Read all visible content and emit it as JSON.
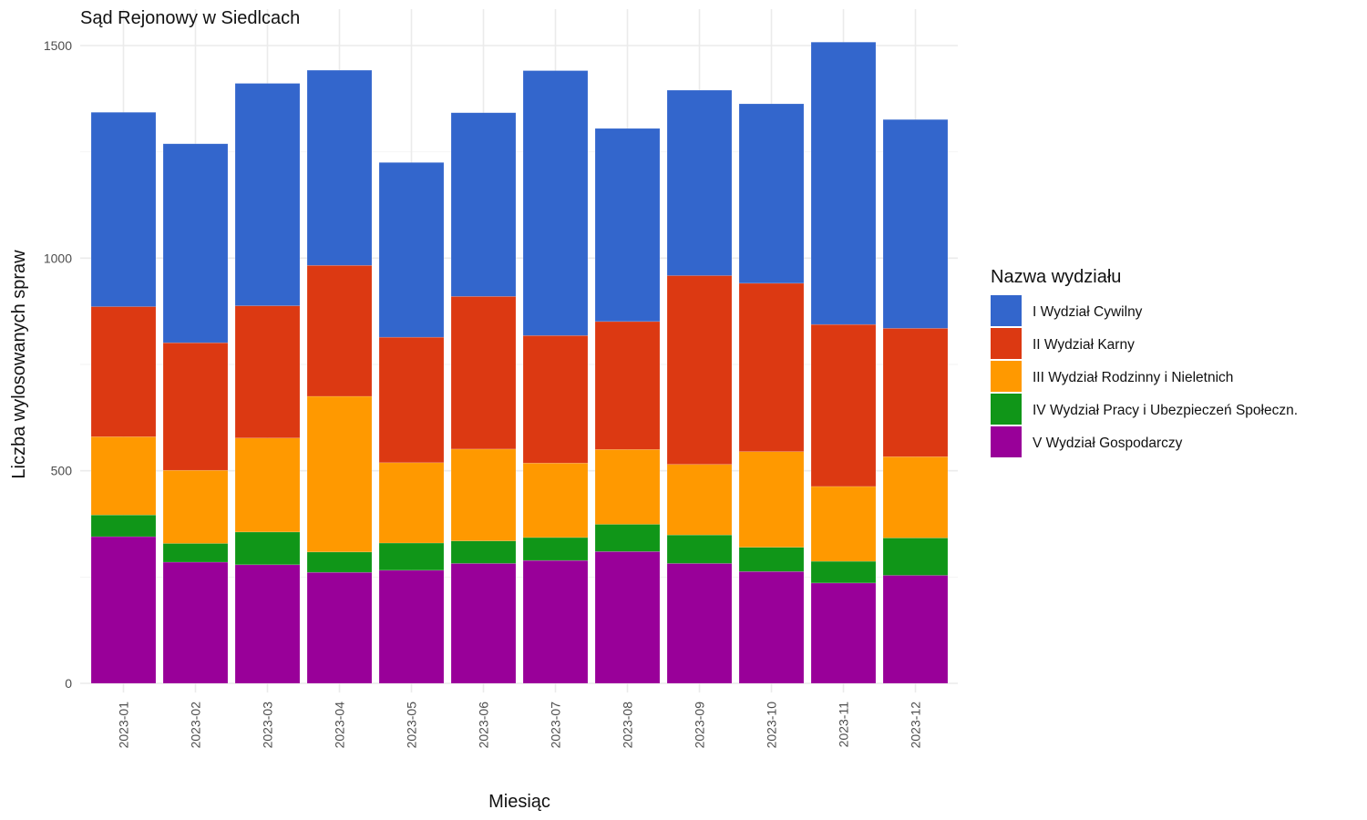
{
  "chart_data": {
    "type": "bar",
    "stacked": true,
    "title": "Sąd Rejonowy w Siedlcach",
    "xlabel": "Miesiąc",
    "ylabel": "Liczba wylosowanych spraw",
    "ylim": [
      0,
      1500
    ],
    "yticks": [
      0,
      500,
      1000,
      1500
    ],
    "grid": true,
    "legend_title": "Nazwa wydziału",
    "legend_position": "right",
    "categories": [
      "2023-01",
      "2023-02",
      "2023-03",
      "2023-04",
      "2023-05",
      "2023-06",
      "2023-07",
      "2023-08",
      "2023-09",
      "2023-10",
      "2023-11",
      "2023-12"
    ],
    "series": [
      {
        "name": "I Wydział Cywilny",
        "color": "#3366CC",
        "values": [
          457,
          468,
          523,
          459,
          411,
          432,
          623,
          454,
          436,
          422,
          664,
          491
        ]
      },
      {
        "name": "II Wydział Karny",
        "color": "#DC3912",
        "values": [
          306,
          300,
          311,
          308,
          295,
          359,
          300,
          301,
          444,
          396,
          381,
          302
        ]
      },
      {
        "name": "III Wydział Rodzinny i Nieletnich",
        "color": "#FF9900",
        "values": [
          184,
          172,
          221,
          366,
          189,
          216,
          175,
          176,
          166,
          225,
          176,
          191
        ]
      },
      {
        "name": "IV Wydział Pracy i Ubezpieczeń Społeczn.",
        "color": "#109618",
        "values": [
          51,
          44,
          77,
          48,
          64,
          53,
          54,
          64,
          67,
          57,
          51,
          88
        ]
      },
      {
        "name": "V Wydział Gospodarczy",
        "color": "#990099",
        "values": [
          345,
          285,
          279,
          261,
          266,
          282,
          289,
          310,
          282,
          263,
          236,
          254
        ]
      }
    ]
  }
}
